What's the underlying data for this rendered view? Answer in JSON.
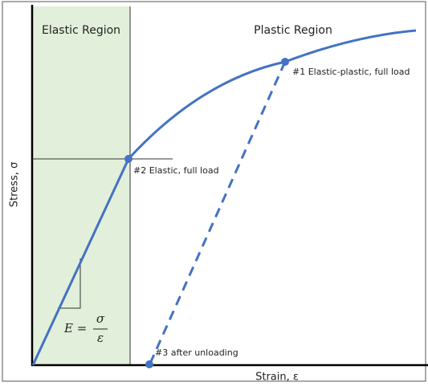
{
  "regions": {
    "elastic": "Elastic Region",
    "plastic": "Plastic Region"
  },
  "axes": {
    "x_label": "Strain, ε",
    "y_label": "Stress, σ"
  },
  "annotations": [
    "#1 Elastic-plastic, full load",
    "#2 Elastic, full load",
    "#3 after unloading"
  ],
  "formula": {
    "lhs": "E =",
    "numerator": "σ",
    "denominator": "ε"
  }
}
